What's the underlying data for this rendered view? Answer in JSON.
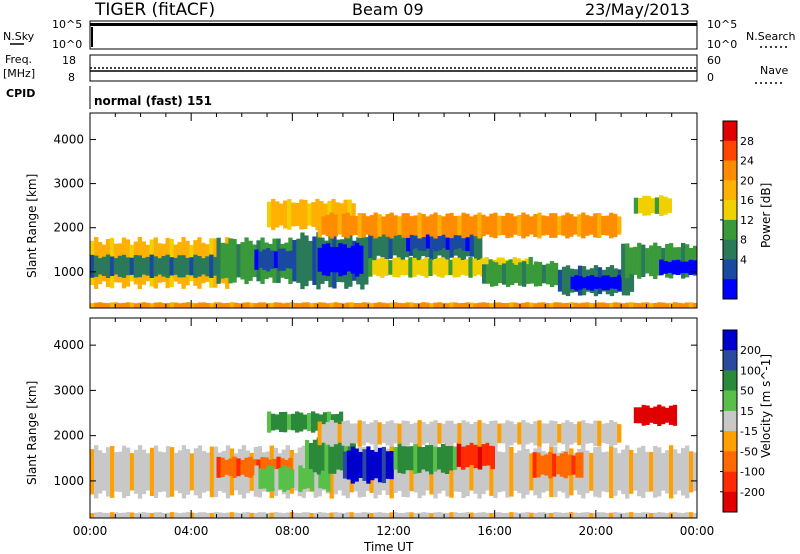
{
  "header": {
    "radar": "TIGER (fitACF)",
    "beam": "Beam 09",
    "date": "23/May/2013"
  },
  "top_panels": {
    "nsky_label": "N.Sky",
    "nsky_ticks": [
      "10^5",
      "10^0"
    ],
    "nsearch_label": "N.Search",
    "nsearch_ticks": [
      "10^5",
      "10^0"
    ],
    "freq_label_1": "Freq.",
    "freq_label_2": "[MHz]",
    "freq_ticks": [
      "18",
      "8"
    ],
    "nave_label": "Nave",
    "nave_ticks": [
      "60",
      "0"
    ],
    "cpid_label": "CPID",
    "cpid_value": "normal (fast) 151"
  },
  "chart_data": [
    {
      "type": "heatmap",
      "name": "power-panel",
      "ylabel": "Slant Range [km]",
      "ylim": [
        180,
        4600
      ],
      "yticks": [
        1000,
        2000,
        3000,
        4000
      ],
      "xlim": [
        0,
        24
      ],
      "xticks": [
        0,
        4,
        8,
        12,
        16,
        20,
        24
      ],
      "colorbar": {
        "label": "Power [dB]",
        "ticks": [
          "28",
          "24",
          "20",
          "16",
          "12",
          "8",
          "4"
        ],
        "colors": [
          "#e00000",
          "#ff4500",
          "#ff8c00",
          "#ffb000",
          "#f0d000",
          "#3a9a3a",
          "#2a7a5a",
          "#1a4aa0",
          "#0000ff"
        ]
      },
      "bands": [
        {
          "t0": 0.0,
          "t1": 5.5,
          "r0": 700,
          "r1": 1700,
          "level": 3
        },
        {
          "t0": 0.0,
          "t1": 5.5,
          "r0": 900,
          "r1": 1350,
          "level": 6
        },
        {
          "t0": 5.0,
          "t1": 8.0,
          "r0": 800,
          "r1": 1700,
          "level": 5
        },
        {
          "t0": 6.5,
          "t1": 8.5,
          "r0": 1050,
          "r1": 1500,
          "level": 7
        },
        {
          "t0": 8.0,
          "t1": 11.0,
          "r0": 700,
          "r1": 1800,
          "level": 6
        },
        {
          "t0": 9.0,
          "t1": 10.8,
          "r0": 950,
          "r1": 1600,
          "level": 8
        },
        {
          "t0": 7.0,
          "t1": 10.5,
          "r0": 2000,
          "r1": 2600,
          "level": 3
        },
        {
          "t0": 11.0,
          "t1": 15.5,
          "r0": 1300,
          "r1": 2100,
          "level": 6
        },
        {
          "t0": 12.5,
          "t1": 15.0,
          "r0": 1500,
          "r1": 1900,
          "level": 7
        },
        {
          "t0": 11.0,
          "t1": 17.5,
          "r0": 900,
          "r1": 1300,
          "level": 4
        },
        {
          "t0": 15.5,
          "t1": 18.5,
          "r0": 700,
          "r1": 1200,
          "level": 5
        },
        {
          "t0": 18.5,
          "t1": 21.5,
          "r0": 500,
          "r1": 1100,
          "level": 6
        },
        {
          "t0": 19.0,
          "t1": 21.0,
          "r0": 600,
          "r1": 900,
          "level": 8
        },
        {
          "t0": 21.0,
          "t1": 24.0,
          "r0": 900,
          "r1": 1600,
          "level": 5
        },
        {
          "t0": 22.5,
          "t1": 24.0,
          "r0": 950,
          "r1": 1250,
          "level": 8
        },
        {
          "t0": 9.0,
          "t1": 21.0,
          "r0": 1800,
          "r1": 2300,
          "level": 2
        },
        {
          "t0": 21.5,
          "t1": 23.0,
          "r0": 2300,
          "r1": 2700,
          "level": 4
        },
        {
          "t0": 0.0,
          "t1": 24.0,
          "r0": 180,
          "r1": 300,
          "level": 2
        }
      ]
    },
    {
      "type": "heatmap",
      "name": "velocity-panel",
      "ylabel": "Slant Range [km]",
      "xlabel": "Time UT",
      "ylim": [
        180,
        4600
      ],
      "yticks": [
        1000,
        2000,
        3000,
        4000
      ],
      "xlim": [
        0,
        24
      ],
      "xticks": [
        0,
        4,
        8,
        12,
        16,
        20,
        24
      ],
      "xtick_labels": [
        "00:00",
        "04:00",
        "08:00",
        "12:00",
        "16:00",
        "20:00",
        "00:00"
      ],
      "colorbar": {
        "label": "Velocity [m s^-1]",
        "ticks": [
          "200",
          "100",
          "50",
          "15",
          "-15",
          "-50",
          "-100",
          "-200"
        ],
        "colors": [
          "#0000cc",
          "#2a4aa0",
          "#2a8a3a",
          "#58c048",
          "#c8c8c8",
          "#ffa000",
          "#ff6a00",
          "#ff2a00",
          "#e00000"
        ]
      },
      "bands": [
        {
          "t0": 0.0,
          "t1": 24.0,
          "r0": 700,
          "r1": 1700,
          "level": 4
        },
        {
          "t0": 5.0,
          "t1": 8.0,
          "r0": 1100,
          "r1": 1500,
          "level": 6
        },
        {
          "t0": 6.5,
          "t1": 9.5,
          "r0": 800,
          "r1": 1300,
          "level": 3
        },
        {
          "t0": 8.5,
          "t1": 10.5,
          "r0": 1200,
          "r1": 1900,
          "level": 2
        },
        {
          "t0": 10.0,
          "t1": 12.0,
          "r0": 1000,
          "r1": 1700,
          "level": 0
        },
        {
          "t0": 12.0,
          "t1": 14.5,
          "r0": 1200,
          "r1": 1800,
          "level": 2
        },
        {
          "t0": 14.5,
          "t1": 16.0,
          "r0": 1300,
          "r1": 1900,
          "level": 7
        },
        {
          "t0": 17.5,
          "t1": 19.5,
          "r0": 1100,
          "r1": 1600,
          "level": 6
        },
        {
          "t0": 7.0,
          "t1": 10.0,
          "r0": 2100,
          "r1": 2500,
          "level": 2
        },
        {
          "t0": 9.0,
          "t1": 21.0,
          "r0": 1800,
          "r1": 2300,
          "level": 4
        },
        {
          "t0": 21.5,
          "t1": 23.2,
          "r0": 2250,
          "r1": 2650,
          "level": 8
        },
        {
          "t0": 0.0,
          "t1": 24.0,
          "r0": 180,
          "r1": 300,
          "level": 4
        }
      ]
    }
  ]
}
